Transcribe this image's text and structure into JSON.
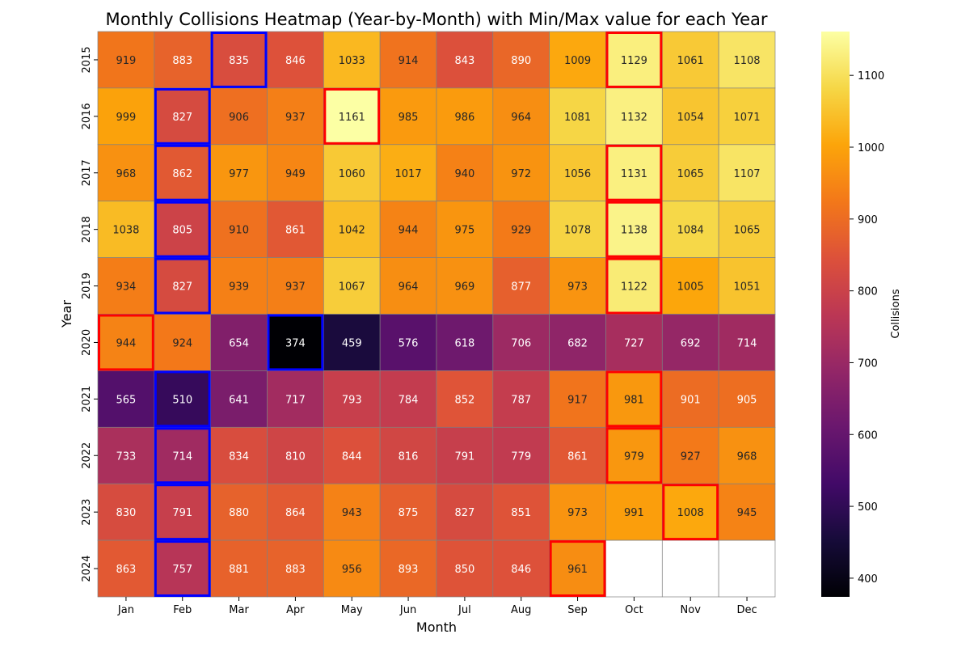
{
  "chart_data": {
    "type": "heatmap",
    "title": "Monthly Collisions Heatmap (Year-by-Month) with Min/Max value for each Year",
    "xlabel": "Month",
    "ylabel": "Year",
    "colorbar_label": "Collisions",
    "colormap": "inferno",
    "x_categories": [
      "Jan",
      "Feb",
      "Mar",
      "Apr",
      "May",
      "Jun",
      "Jul",
      "Aug",
      "Sep",
      "Oct",
      "Nov",
      "Dec"
    ],
    "y_categories": [
      "2015",
      "2016",
      "2017",
      "2018",
      "2019",
      "2020",
      "2021",
      "2022",
      "2023",
      "2024"
    ],
    "values": [
      [
        919,
        883,
        835,
        846,
        1033,
        914,
        843,
        890,
        1009,
        1129,
        1061,
        1108
      ],
      [
        999,
        827,
        906,
        937,
        1161,
        985,
        986,
        964,
        1081,
        1132,
        1054,
        1071
      ],
      [
        968,
        862,
        977,
        949,
        1060,
        1017,
        940,
        972,
        1056,
        1131,
        1065,
        1107
      ],
      [
        1038,
        805,
        910,
        861,
        1042,
        944,
        975,
        929,
        1078,
        1138,
        1084,
        1065
      ],
      [
        934,
        827,
        939,
        937,
        1067,
        964,
        969,
        877,
        973,
        1122,
        1005,
        1051
      ],
      [
        944,
        924,
        654,
        374,
        459,
        576,
        618,
        706,
        682,
        727,
        692,
        714
      ],
      [
        565,
        510,
        641,
        717,
        793,
        784,
        852,
        787,
        917,
        981,
        901,
        905
      ],
      [
        733,
        714,
        834,
        810,
        844,
        816,
        791,
        779,
        861,
        979,
        927,
        968
      ],
      [
        830,
        791,
        880,
        864,
        943,
        875,
        827,
        851,
        973,
        991,
        1008,
        945
      ],
      [
        863,
        757,
        881,
        883,
        956,
        893,
        850,
        846,
        961,
        null,
        null,
        null
      ]
    ],
    "color_range": [
      374,
      1161
    ],
    "colorbar_ticks": [
      400,
      500,
      600,
      700,
      800,
      900,
      1000,
      1100
    ],
    "max_highlight_color": "#ff0000",
    "min_highlight_color": "#0000ff"
  }
}
